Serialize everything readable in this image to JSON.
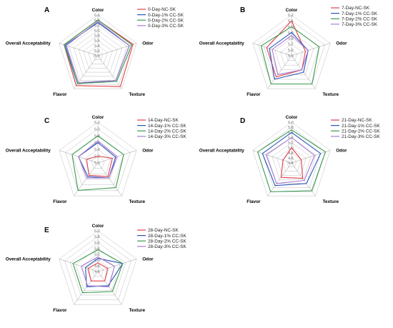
{
  "colors": {
    "NC": "#e0404a",
    "CC1": "#2b55b8",
    "CC2": "#3a9a4e",
    "CC3": "#a77bd3",
    "grid": "#bdbdbd",
    "spoke": "#9a9a9a"
  },
  "chart_data": [
    {
      "type": "radar",
      "panel": "A",
      "axes": [
        "Color",
        "Odor",
        "Texture",
        "Flavor",
        "Overall Acceptability"
      ],
      "ticks": [
        "5.0",
        "5.2",
        "5.4",
        "5.6",
        "5.8",
        "6.0",
        "6.2",
        "6.4",
        "6.6"
      ],
      "range": [
        5.0,
        6.6
      ],
      "series": [
        {
          "name": "0-Day-NC-SK",
          "color_key": "NC",
          "values": [
            6.4,
            6.45,
            6.5,
            6.45,
            6.4
          ]
        },
        {
          "name": "0-Day-1% CC-SK",
          "color_key": "CC1",
          "values": [
            6.3,
            6.3,
            6.2,
            6.35,
            6.35
          ]
        },
        {
          "name": "0-Day-2% CC-SK",
          "color_key": "CC2",
          "values": [
            6.4,
            6.4,
            6.25,
            6.35,
            6.4
          ]
        },
        {
          "name": "0-Day-3% CC-SK",
          "color_key": "CC3",
          "values": [
            6.35,
            6.3,
            6.2,
            6.3,
            6.3
          ]
        }
      ]
    },
    {
      "type": "radar",
      "panel": "B",
      "axes": [
        "Color",
        "Odor",
        "Texture",
        "Flavor",
        "Overall Acceptability"
      ],
      "ticks": [
        "5.5",
        "5.6",
        "5.7",
        "5.8",
        "5.9",
        "6.0",
        "6.1",
        "6.2"
      ],
      "range": [
        5.5,
        6.2
      ],
      "series": [
        {
          "name": "7-Day-NC-SK",
          "color_key": "NC",
          "values": [
            6.1,
            5.75,
            5.8,
            5.95,
            5.95
          ]
        },
        {
          "name": "7-Day-1% CC-SK",
          "color_key": "CC1",
          "values": [
            5.9,
            5.8,
            5.85,
            6.0,
            5.9
          ]
        },
        {
          "name": "7-Day-2% CC-SK",
          "color_key": "CC2",
          "values": [
            6.0,
            6.0,
            6.1,
            6.1,
            6.05
          ]
        },
        {
          "name": "7-Day-3% CC-SK",
          "color_key": "CC3",
          "values": [
            5.85,
            5.8,
            5.8,
            5.9,
            5.85
          ]
        }
      ]
    },
    {
      "type": "radar",
      "panel": "C",
      "axes": [
        "Color",
        "Odor",
        "Texture",
        "Flavor",
        "Overall Acceptability"
      ],
      "ticks": [
        "5.0",
        "5.2",
        "5.4",
        "5.6",
        "5.8",
        "6.0",
        "6.2"
      ],
      "range": [
        5.0,
        6.2
      ],
      "series": [
        {
          "name": "14-Day-NC-SK",
          "color_key": "NC",
          "values": [
            5.2,
            5.45,
            5.5,
            5.45,
            5.35
          ]
        },
        {
          "name": "14-Day-1% CC-SK",
          "color_key": "CC1",
          "values": [
            5.6,
            5.55,
            5.55,
            5.5,
            5.6
          ]
        },
        {
          "name": "14-Day-2% CC-SK",
          "color_key": "CC2",
          "values": [
            5.8,
            5.8,
            5.9,
            6.0,
            5.8
          ]
        },
        {
          "name": "14-Day-3% CC-SK",
          "color_key": "CC3",
          "values": [
            5.65,
            5.6,
            5.55,
            5.55,
            5.6
          ]
        }
      ]
    },
    {
      "type": "radar",
      "panel": "D",
      "axes": [
        "Color",
        "Odor",
        "Texture",
        "Flavor",
        "Overall Acceptability"
      ],
      "ticks": [
        "4.4",
        "4.6",
        "4.8",
        "5.0",
        "5.2",
        "5.4",
        "5.6",
        "5.8",
        "6.0"
      ],
      "range": [
        4.4,
        6.0
      ],
      "series": [
        {
          "name": "21-Day-NC-SK",
          "color_key": "NC",
          "values": [
            5.0,
            4.8,
            5.15,
            5.1,
            4.75
          ]
        },
        {
          "name": "21-Day-1% CC-SK",
          "color_key": "CC1",
          "values": [
            5.6,
            5.6,
            5.4,
            5.5,
            5.6
          ]
        },
        {
          "name": "21-Day-2% CC-SK",
          "color_key": "CC2",
          "values": [
            5.7,
            5.8,
            5.75,
            5.8,
            5.8
          ]
        },
        {
          "name": "21-Day-3% CC-SK",
          "color_key": "CC3",
          "values": [
            5.4,
            5.35,
            5.25,
            5.4,
            5.45
          ]
        }
      ]
    },
    {
      "type": "radar",
      "panel": "E",
      "axes": [
        "Color",
        "Odor",
        "Texture",
        "Flavor",
        "Overall Acceptability"
      ],
      "ticks": [
        "4.6",
        "4.8",
        "5.0",
        "5.2",
        "5.4",
        "5.6",
        "5.8",
        "6.0"
      ],
      "range": [
        4.6,
        6.0
      ],
      "series": [
        {
          "name": "28-Day-NC-SK",
          "color_key": "NC",
          "values": [
            4.9,
            4.95,
            5.0,
            5.0,
            4.95
          ]
        },
        {
          "name": "28-Day-1% CC-SK",
          "color_key": "CC1",
          "values": [
            5.05,
            5.5,
            5.2,
            5.25,
            5.05
          ]
        },
        {
          "name": "28-Day-2% CC-SK",
          "color_key": "CC2",
          "values": [
            5.35,
            5.5,
            5.45,
            5.5,
            5.5
          ]
        },
        {
          "name": "28-Day-3% CC-SK",
          "color_key": "CC3",
          "values": [
            5.1,
            5.2,
            5.25,
            5.2,
            5.2
          ]
        }
      ]
    }
  ]
}
